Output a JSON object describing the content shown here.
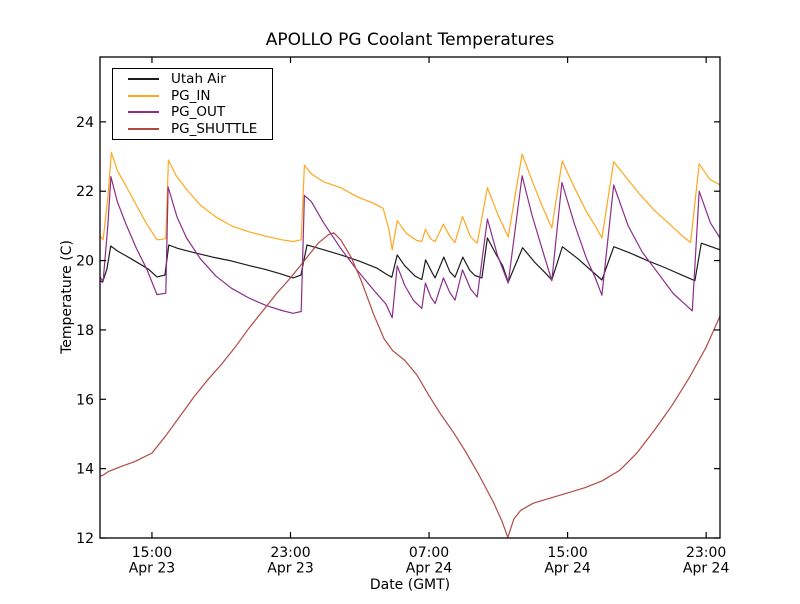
{
  "chart_data": {
    "type": "line",
    "title": "APOLLO PG Coolant Temperatures",
    "xlabel": "Date (GMT)",
    "ylabel": "Temperature (C)",
    "grid": false,
    "legend_position": "upper left",
    "x_unit": "hours since Apr 23 00:00 GMT",
    "xlim": [
      12.0,
      47.8
    ],
    "ylim": [
      12,
      25.87
    ],
    "yticks": [
      12,
      14,
      16,
      18,
      20,
      22,
      24
    ],
    "xticks": [
      {
        "value": 15,
        "line1": "15:00",
        "line2": "Apr 23"
      },
      {
        "value": 23,
        "line1": "23:00",
        "line2": "Apr 23"
      },
      {
        "value": 31,
        "line1": "07:00",
        "line2": "Apr 24"
      },
      {
        "value": 39,
        "line1": "15:00",
        "line2": "Apr 24"
      },
      {
        "value": 47,
        "line1": "23:00",
        "line2": "Apr 24"
      }
    ],
    "series": [
      {
        "name": "Utah Air",
        "color": "#1c1c1c",
        "points": [
          [
            12.0,
            19.42
          ],
          [
            12.15,
            19.38
          ],
          [
            12.4,
            19.75
          ],
          [
            12.62,
            20.42
          ],
          [
            13.0,
            20.28
          ],
          [
            13.8,
            20.05
          ],
          [
            14.8,
            19.75
          ],
          [
            15.29,
            19.53
          ],
          [
            15.75,
            19.58
          ],
          [
            15.97,
            20.45
          ],
          [
            16.5,
            20.35
          ],
          [
            17.5,
            20.22
          ],
          [
            18.5,
            20.1
          ],
          [
            19.5,
            20.0
          ],
          [
            20.5,
            19.87
          ],
          [
            21.5,
            19.75
          ],
          [
            22.4,
            19.62
          ],
          [
            23.15,
            19.5
          ],
          [
            23.6,
            19.58
          ],
          [
            23.95,
            20.45
          ],
          [
            24.3,
            20.4
          ],
          [
            25.0,
            20.3
          ],
          [
            26.0,
            20.15
          ],
          [
            27.0,
            19.98
          ],
          [
            28.0,
            19.78
          ],
          [
            28.55,
            19.6
          ],
          [
            28.85,
            19.52
          ],
          [
            29.16,
            20.16
          ],
          [
            29.6,
            19.85
          ],
          [
            30.2,
            19.55
          ],
          [
            30.58,
            19.45
          ],
          [
            30.8,
            20.02
          ],
          [
            31.2,
            19.63
          ],
          [
            31.35,
            19.5
          ],
          [
            31.85,
            20.1
          ],
          [
            32.2,
            19.68
          ],
          [
            32.5,
            19.52
          ],
          [
            32.95,
            20.1
          ],
          [
            33.35,
            19.72
          ],
          [
            33.65,
            19.57
          ],
          [
            34.05,
            19.5
          ],
          [
            34.37,
            20.65
          ],
          [
            34.85,
            20.2
          ],
          [
            35.25,
            19.85
          ],
          [
            35.57,
            19.38
          ],
          [
            36.4,
            20.37
          ],
          [
            37.1,
            19.95
          ],
          [
            37.7,
            19.65
          ],
          [
            38.09,
            19.44
          ],
          [
            38.7,
            20.4
          ],
          [
            39.6,
            20.05
          ],
          [
            40.4,
            19.7
          ],
          [
            40.98,
            19.44
          ],
          [
            41.67,
            20.4
          ],
          [
            42.6,
            20.22
          ],
          [
            43.6,
            20.0
          ],
          [
            44.6,
            19.8
          ],
          [
            45.6,
            19.58
          ],
          [
            46.35,
            19.42
          ],
          [
            46.72,
            20.5
          ],
          [
            47.3,
            20.4
          ],
          [
            47.8,
            20.31
          ]
        ]
      },
      {
        "name": "PG_IN",
        "color": "#ffa71f",
        "points": [
          [
            12.0,
            20.72
          ],
          [
            12.18,
            20.6
          ],
          [
            12.45,
            21.8
          ],
          [
            12.66,
            23.12
          ],
          [
            13.0,
            22.6
          ],
          [
            13.5,
            22.15
          ],
          [
            14.1,
            21.6
          ],
          [
            14.7,
            21.05
          ],
          [
            15.29,
            20.6
          ],
          [
            15.8,
            20.63
          ],
          [
            15.95,
            22.9
          ],
          [
            16.4,
            22.45
          ],
          [
            17.0,
            22.05
          ],
          [
            17.8,
            21.6
          ],
          [
            18.7,
            21.25
          ],
          [
            19.6,
            21.0
          ],
          [
            20.6,
            20.83
          ],
          [
            21.6,
            20.7
          ],
          [
            22.5,
            20.6
          ],
          [
            23.15,
            20.55
          ],
          [
            23.62,
            20.6
          ],
          [
            23.8,
            22.75
          ],
          [
            24.2,
            22.5
          ],
          [
            24.9,
            22.27
          ],
          [
            25.9,
            22.1
          ],
          [
            26.85,
            21.84
          ],
          [
            27.8,
            21.65
          ],
          [
            28.35,
            21.5
          ],
          [
            28.68,
            20.9
          ],
          [
            28.87,
            20.31
          ],
          [
            29.16,
            21.15
          ],
          [
            29.7,
            20.78
          ],
          [
            30.3,
            20.58
          ],
          [
            30.58,
            20.55
          ],
          [
            30.79,
            20.9
          ],
          [
            31.1,
            20.62
          ],
          [
            31.35,
            20.55
          ],
          [
            31.83,
            21.05
          ],
          [
            32.2,
            20.7
          ],
          [
            32.5,
            20.52
          ],
          [
            32.93,
            21.27
          ],
          [
            33.4,
            20.68
          ],
          [
            33.78,
            20.5
          ],
          [
            34.37,
            22.1
          ],
          [
            34.95,
            21.35
          ],
          [
            35.57,
            20.68
          ],
          [
            36.37,
            23.07
          ],
          [
            36.95,
            22.3
          ],
          [
            37.55,
            21.55
          ],
          [
            38.09,
            20.94
          ],
          [
            38.69,
            22.87
          ],
          [
            39.4,
            22.1
          ],
          [
            40.1,
            21.4
          ],
          [
            40.6,
            21.0
          ],
          [
            40.98,
            20.65
          ],
          [
            41.66,
            22.85
          ],
          [
            42.3,
            22.45
          ],
          [
            43.1,
            21.95
          ],
          [
            44.0,
            21.45
          ],
          [
            44.9,
            21.05
          ],
          [
            45.6,
            20.72
          ],
          [
            46.1,
            20.52
          ],
          [
            46.6,
            22.79
          ],
          [
            47.2,
            22.35
          ],
          [
            47.8,
            22.18
          ]
        ]
      },
      {
        "name": "PG_OUT",
        "color": "#8c2d8c",
        "points": [
          [
            12.0,
            19.52
          ],
          [
            12.18,
            19.4
          ],
          [
            12.45,
            21.0
          ],
          [
            12.63,
            22.42
          ],
          [
            13.0,
            21.7
          ],
          [
            13.5,
            21.05
          ],
          [
            14.1,
            20.35
          ],
          [
            14.7,
            19.75
          ],
          [
            15.29,
            19.02
          ],
          [
            15.8,
            19.06
          ],
          [
            15.93,
            22.12
          ],
          [
            16.45,
            21.25
          ],
          [
            17.0,
            20.65
          ],
          [
            17.8,
            20.05
          ],
          [
            18.7,
            19.55
          ],
          [
            19.6,
            19.2
          ],
          [
            20.6,
            18.92
          ],
          [
            21.6,
            18.7
          ],
          [
            22.5,
            18.56
          ],
          [
            23.15,
            18.48
          ],
          [
            23.62,
            18.53
          ],
          [
            23.8,
            21.88
          ],
          [
            24.2,
            21.7
          ],
          [
            24.9,
            21.1
          ],
          [
            25.9,
            20.35
          ],
          [
            26.85,
            19.72
          ],
          [
            27.8,
            19.15
          ],
          [
            28.5,
            18.75
          ],
          [
            28.87,
            18.35
          ],
          [
            29.16,
            19.85
          ],
          [
            29.6,
            19.28
          ],
          [
            30.1,
            18.85
          ],
          [
            30.58,
            18.62
          ],
          [
            30.79,
            19.35
          ],
          [
            31.1,
            18.95
          ],
          [
            31.35,
            18.76
          ],
          [
            31.83,
            19.5
          ],
          [
            32.2,
            19.08
          ],
          [
            32.5,
            18.86
          ],
          [
            32.93,
            19.73
          ],
          [
            33.4,
            19.18
          ],
          [
            33.78,
            18.95
          ],
          [
            34.37,
            21.2
          ],
          [
            34.95,
            20.15
          ],
          [
            35.57,
            19.35
          ],
          [
            36.37,
            22.44
          ],
          [
            36.95,
            21.3
          ],
          [
            37.55,
            20.3
          ],
          [
            38.09,
            19.42
          ],
          [
            38.67,
            22.25
          ],
          [
            39.4,
            21.05
          ],
          [
            40.1,
            20.05
          ],
          [
            40.6,
            19.5
          ],
          [
            40.98,
            19.0
          ],
          [
            41.66,
            22.18
          ],
          [
            42.5,
            21.0
          ],
          [
            43.3,
            20.25
          ],
          [
            44.2,
            19.65
          ],
          [
            45.1,
            19.05
          ],
          [
            45.7,
            18.78
          ],
          [
            46.2,
            18.55
          ],
          [
            46.6,
            22.0
          ],
          [
            47.25,
            21.08
          ],
          [
            47.8,
            20.65
          ]
        ]
      },
      {
        "name": "PG_SHUTTLE",
        "color": "#b24a42",
        "points": [
          [
            12.0,
            13.78
          ],
          [
            12.2,
            13.82
          ],
          [
            12.5,
            13.92
          ],
          [
            13.3,
            14.08
          ],
          [
            14.0,
            14.2
          ],
          [
            15.0,
            14.45
          ],
          [
            15.8,
            14.95
          ],
          [
            16.6,
            15.5
          ],
          [
            17.4,
            16.05
          ],
          [
            18.2,
            16.55
          ],
          [
            19.0,
            17.0
          ],
          [
            19.8,
            17.5
          ],
          [
            20.6,
            18.05
          ],
          [
            21.4,
            18.55
          ],
          [
            22.2,
            19.05
          ],
          [
            23.0,
            19.5
          ],
          [
            23.8,
            20.0
          ],
          [
            24.6,
            20.5
          ],
          [
            25.2,
            20.75
          ],
          [
            25.5,
            20.8
          ],
          [
            25.9,
            20.6
          ],
          [
            26.5,
            20.1
          ],
          [
            27.1,
            19.4
          ],
          [
            27.8,
            18.45
          ],
          [
            28.4,
            17.75
          ],
          [
            28.9,
            17.4
          ],
          [
            29.6,
            17.12
          ],
          [
            30.3,
            16.7
          ],
          [
            31.0,
            16.1
          ],
          [
            31.7,
            15.55
          ],
          [
            32.4,
            15.05
          ],
          [
            33.1,
            14.5
          ],
          [
            33.9,
            13.8
          ],
          [
            34.7,
            13.05
          ],
          [
            35.2,
            12.5
          ],
          [
            35.55,
            12.02
          ],
          [
            35.9,
            12.55
          ],
          [
            36.3,
            12.8
          ],
          [
            37.0,
            13.0
          ],
          [
            38.0,
            13.15
          ],
          [
            39.0,
            13.3
          ],
          [
            40.0,
            13.45
          ],
          [
            41.0,
            13.65
          ],
          [
            42.0,
            13.95
          ],
          [
            43.0,
            14.45
          ],
          [
            44.0,
            15.1
          ],
          [
            45.0,
            15.8
          ],
          [
            46.0,
            16.6
          ],
          [
            47.0,
            17.5
          ],
          [
            47.8,
            18.4
          ]
        ]
      }
    ]
  }
}
